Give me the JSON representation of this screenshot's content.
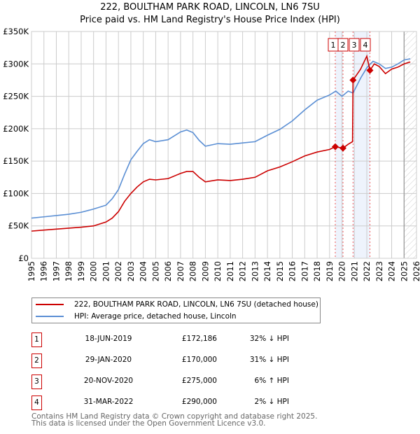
{
  "title": "222, BOULTHAM PARK ROAD, LINCOLN, LN6 7SU",
  "subtitle": "Price paid vs. HM Land Registry's House Price Index (HPI)",
  "colors": {
    "property": "#cc0000",
    "hpi": "#5b8fd4",
    "shade": "#eef3fc"
  },
  "chart_data": {
    "type": "line",
    "xlim": [
      1995,
      2026
    ],
    "ylim": [
      0,
      350000
    ],
    "x_ticks": [
      "1995",
      "1996",
      "1997",
      "1998",
      "1999",
      "2000",
      "2001",
      "2002",
      "2003",
      "2004",
      "2005",
      "2006",
      "2007",
      "2008",
      "2009",
      "2010",
      "2011",
      "2012",
      "2013",
      "2014",
      "2015",
      "2016",
      "2017",
      "2018",
      "2019",
      "2020",
      "2021",
      "2022",
      "2023",
      "2024",
      "2025",
      "2026"
    ],
    "y_ticks": [
      {
        "v": 0,
        "l": "£0"
      },
      {
        "v": 50000,
        "l": "£50K"
      },
      {
        "v": 100000,
        "l": "£100K"
      },
      {
        "v": 150000,
        "l": "£150K"
      },
      {
        "v": 200000,
        "l": "£200K"
      },
      {
        "v": 250000,
        "l": "£250K"
      },
      {
        "v": 300000,
        "l": "£300K"
      },
      {
        "v": 350000,
        "l": "£350K"
      }
    ],
    "shaded_ranges": [
      [
        2019.46,
        2020.08
      ],
      [
        2020.89,
        2022.25
      ]
    ],
    "forecast_from": 2025.0,
    "series": [
      {
        "name": "222, BOULTHAM PARK ROAD, LINCOLN, LN6 7SU (detached house)",
        "x": [
          1995,
          1996,
          1997,
          1998,
          1999,
          2000,
          2001,
          2001.5,
          2002,
          2002.5,
          2003,
          2003.5,
          2004,
          2004.5,
          2005,
          2006,
          2007,
          2007.5,
          2008,
          2008.5,
          2009,
          2010,
          2011,
          2012,
          2013,
          2014,
          2015,
          2016,
          2017,
          2018,
          2019,
          2019.46,
          2020.08,
          2020.5,
          2020.85,
          2020.89,
          2021.5,
          2022,
          2022.25,
          2022.6,
          2023,
          2023.5,
          2024,
          2024.5,
          2025,
          2025.5
        ],
        "values": [
          42000,
          43500,
          45000,
          46500,
          48000,
          50000,
          56000,
          62000,
          72000,
          88000,
          100000,
          110000,
          118000,
          122000,
          121000,
          123000,
          131000,
          134000,
          134000,
          125000,
          118000,
          121000,
          120000,
          122000,
          125000,
          135000,
          141000,
          149000,
          158000,
          164000,
          168000,
          172186,
          170000,
          176000,
          180000,
          275000,
          292000,
          312000,
          290000,
          300000,
          296000,
          285000,
          292000,
          295000,
          300000,
          303000
        ]
      },
      {
        "name": "HPI: Average price, detached house, Lincoln",
        "x": [
          1995,
          1996,
          1997,
          1998,
          1999,
          2000,
          2001,
          2001.5,
          2002,
          2002.5,
          2003,
          2003.5,
          2004,
          2004.5,
          2005,
          2006,
          2007,
          2007.5,
          2008,
          2008.5,
          2009,
          2010,
          2011,
          2012,
          2013,
          2014,
          2015,
          2016,
          2017,
          2018,
          2019,
          2019.5,
          2020,
          2020.5,
          2020.89,
          2021.5,
          2022,
          2022.5,
          2023,
          2023.5,
          2024,
          2024.5,
          2025,
          2025.5
        ],
        "values": [
          62000,
          64000,
          66000,
          68000,
          71000,
          76000,
          82000,
          92000,
          106000,
          130000,
          152000,
          165000,
          177000,
          183000,
          180000,
          183000,
          195000,
          198000,
          194000,
          182000,
          173000,
          177000,
          176000,
          178000,
          180000,
          190000,
          199000,
          212000,
          229000,
          244000,
          252000,
          258000,
          250000,
          258000,
          255000,
          278000,
          294000,
          304000,
          300000,
          293000,
          295000,
          300000,
          306000,
          308000
        ]
      }
    ],
    "sales": [
      {
        "label": "1",
        "date": "18-JUN-2019",
        "x": 2019.46,
        "price": "£172,186",
        "value": 172186,
        "hpi": "32% ↓ HPI"
      },
      {
        "label": "2",
        "date": "29-JAN-2020",
        "x": 2020.08,
        "price": "£170,000",
        "value": 170000,
        "hpi": "31% ↓ HPI"
      },
      {
        "label": "3",
        "date": "20-NOV-2020",
        "x": 2020.89,
        "price": "£275,000",
        "value": 275000,
        "hpi": "6% ↑ HPI"
      },
      {
        "label": "4",
        "date": "31-MAR-2022",
        "x": 2022.25,
        "price": "£290,000",
        "value": 290000,
        "hpi": "2% ↓ HPI"
      }
    ]
  },
  "footer": [
    "Contains HM Land Registry data © Crown copyright and database right 2025.",
    "This data is licensed under the Open Government Licence v3.0."
  ]
}
